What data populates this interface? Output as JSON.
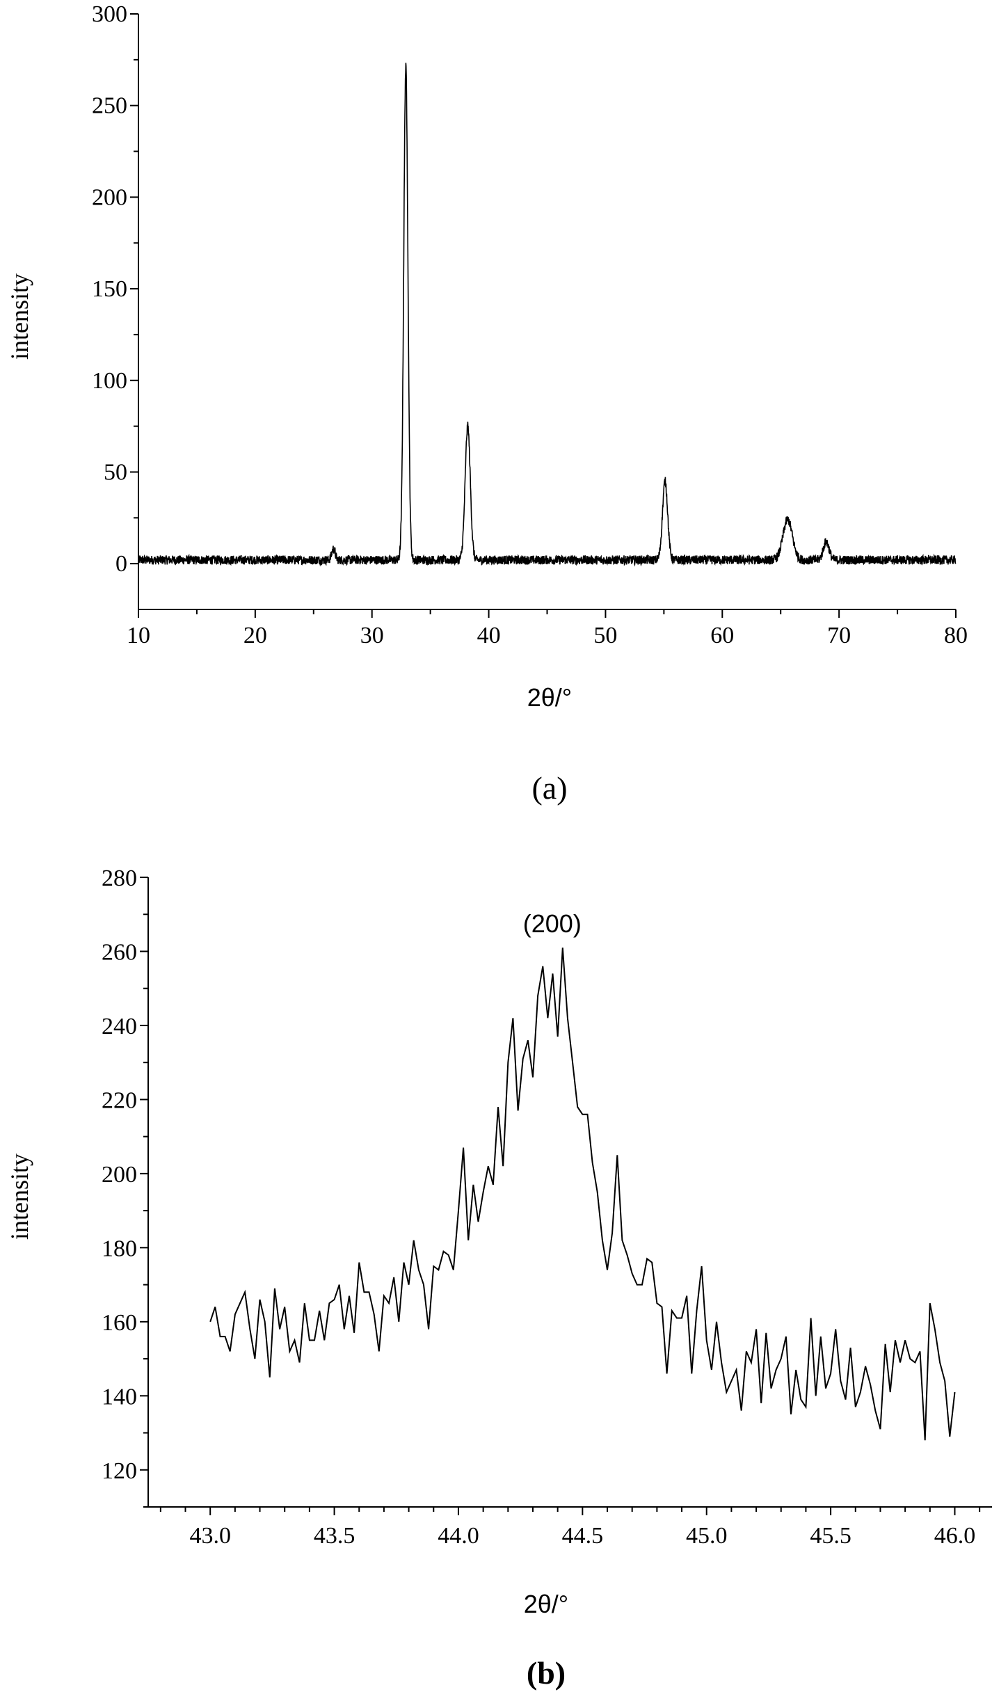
{
  "chart_data": [
    {
      "panel": "a",
      "type": "line",
      "caption": "(a)",
      "xlabel": "2θ/°",
      "ylabel": "intensity",
      "xlim": [
        10,
        80
      ],
      "ylim": [
        -25,
        300
      ],
      "xticks": [
        10,
        20,
        30,
        40,
        50,
        60,
        70,
        80
      ],
      "yticks": [
        0,
        50,
        100,
        150,
        200,
        250,
        300
      ],
      "grid": false,
      "peaks": [
        {
          "x": 26.7,
          "y": 8
        },
        {
          "x": 32.9,
          "y": 271
        },
        {
          "x": 38.2,
          "y": 75
        },
        {
          "x": 55.1,
          "y": 45
        },
        {
          "x": 65.6,
          "y": 24
        },
        {
          "x": 68.9,
          "y": 12
        }
      ],
      "baseline": 2
    },
    {
      "panel": "b",
      "type": "line",
      "caption": "(b)",
      "xlabel": "2θ/°",
      "ylabel": "intensity",
      "xlim": [
        42.75,
        46.15
      ],
      "ylim": [
        110,
        280
      ],
      "xticks": [
        "43.0",
        "43.5",
        "44.0",
        "44.5",
        "45.0",
        "45.5",
        "46.0"
      ],
      "yticks": [
        120,
        140,
        160,
        180,
        200,
        220,
        240,
        260,
        280
      ],
      "grid": false,
      "annotation": {
        "text": "(200)",
        "x": 44.42,
        "y": 261
      },
      "x": [
        43.0,
        43.02,
        43.04,
        43.06,
        43.08,
        43.1,
        43.12,
        43.14,
        43.16,
        43.18,
        43.2,
        43.22,
        43.24,
        43.26,
        43.28,
        43.3,
        43.32,
        43.34,
        43.36,
        43.38,
        43.4,
        43.42,
        43.44,
        43.46,
        43.48,
        43.5,
        43.52,
        43.54,
        43.56,
        43.58,
        43.6,
        43.62,
        43.64,
        43.66,
        43.68,
        43.7,
        43.72,
        43.74,
        43.76,
        43.78,
        43.8,
        43.82,
        43.84,
        43.86,
        43.88,
        43.9,
        43.92,
        43.94,
        43.96,
        43.98,
        44.0,
        44.02,
        44.04,
        44.06,
        44.08,
        44.1,
        44.12,
        44.14,
        44.16,
        44.18,
        44.2,
        44.22,
        44.24,
        44.26,
        44.28,
        44.3,
        44.32,
        44.34,
        44.36,
        44.38,
        44.4,
        44.42,
        44.44,
        44.46,
        44.48,
        44.5,
        44.52,
        44.54,
        44.56,
        44.58,
        44.6,
        44.62,
        44.64,
        44.66,
        44.68,
        44.7,
        44.72,
        44.74,
        44.76,
        44.78,
        44.8,
        44.82,
        44.84,
        44.86,
        44.88,
        44.9,
        44.92,
        44.94,
        44.96,
        44.98,
        45.0,
        45.02,
        45.04,
        45.06,
        45.08,
        45.1,
        45.12,
        45.14,
        45.16,
        45.18,
        45.2,
        45.22,
        45.24,
        45.26,
        45.28,
        45.3,
        45.32,
        45.34,
        45.36,
        45.38,
        45.4,
        45.42,
        45.44,
        45.46,
        45.48,
        45.5,
        45.52,
        45.54,
        45.56,
        45.58,
        45.6,
        45.62,
        45.64,
        45.66,
        45.68,
        45.7,
        45.72,
        45.74,
        45.76,
        45.78,
        45.8,
        45.82,
        45.84,
        45.86,
        45.88,
        45.9,
        45.92,
        45.94,
        45.96,
        45.98,
        46.0
      ],
      "y": [
        160,
        164,
        156,
        156,
        152,
        162,
        165,
        168,
        158,
        150,
        166,
        160,
        145,
        169,
        158,
        164,
        152,
        155,
        149,
        165,
        155,
        155,
        163,
        155,
        165,
        166,
        170,
        158,
        167,
        157,
        176,
        168,
        168,
        162,
        152,
        167,
        165,
        172,
        160,
        176,
        170,
        182,
        174,
        170,
        158,
        175,
        174,
        179,
        178,
        174,
        190,
        207,
        182,
        197,
        187,
        195,
        202,
        197,
        218,
        202,
        230,
        242,
        217,
        231,
        236,
        226,
        248,
        256,
        242,
        254,
        237,
        261,
        242,
        230,
        218,
        216,
        216,
        203,
        195,
        182,
        174,
        184,
        205,
        182,
        178,
        173,
        170,
        170,
        177,
        176,
        165,
        164,
        146,
        163,
        161,
        161,
        167,
        146,
        163,
        175,
        155,
        147,
        160,
        149,
        141,
        144,
        147,
        136,
        152,
        149,
        158,
        138,
        157,
        142,
        147,
        150,
        156,
        135,
        147,
        139,
        137,
        161,
        140,
        156,
        142,
        146,
        158,
        144,
        139,
        153,
        137,
        141,
        148,
        143,
        136,
        131,
        154,
        141,
        155,
        149,
        155,
        150,
        149,
        152,
        128,
        165,
        158,
        149,
        144,
        129,
        141
      ]
    }
  ]
}
